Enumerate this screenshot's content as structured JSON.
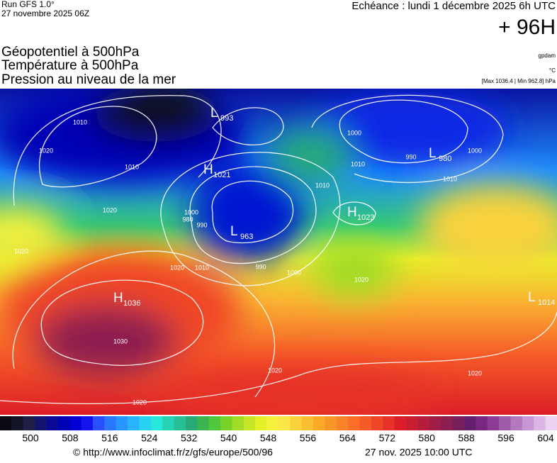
{
  "header": {
    "run": "Run GFS 1.0°",
    "run_date": "27 novembre 2025 06Z",
    "forecast": "Echéance : lundi 1 décembre 2025 6h UTC",
    "lead": "+ 96H"
  },
  "legend": {
    "fields": [
      "Géopotentiel à 500hPa",
      "Température à 500hPa",
      "Pression au niveau de la mer"
    ],
    "units": [
      "gpdam",
      "°C",
      "[Max 1036.4 | Min 962.8] hPa"
    ]
  },
  "map": {
    "centers": [
      {
        "letter": "L",
        "pressure": 993
      },
      {
        "letter": "H",
        "pressure": 1021
      },
      {
        "letter": "L",
        "pressure": 963
      },
      {
        "letter": "H",
        "pressure": 1023
      },
      {
        "letter": "L",
        "pressure": 980
      },
      {
        "letter": "H",
        "pressure": 1036
      },
      {
        "letter": "L",
        "pressure": 1014
      }
    ],
    "isobar_labels": [
      1010,
      1020,
      1010,
      1020,
      1020,
      1000,
      990,
      980,
      1020,
      1010,
      1000,
      990,
      1010,
      1000,
      1010,
      990,
      1000,
      1010,
      1030,
      1020,
      1020,
      1020,
      1020
    ]
  },
  "scale": {
    "labels": [
      500,
      508,
      516,
      524,
      532,
      540,
      548,
      556,
      564,
      572,
      580,
      588,
      596,
      604
    ],
    "colors": [
      "#0a0a14",
      "#141428",
      "#1e1e46",
      "#14146e",
      "#0a0a96",
      "#0000b4",
      "#0000d2",
      "#1414f0",
      "#2850ff",
      "#2878ff",
      "#2896ff",
      "#28b4ff",
      "#28d2f0",
      "#28e6dc",
      "#28d2b4",
      "#28be96",
      "#28aa78",
      "#3cb450",
      "#50c83c",
      "#78d228",
      "#a0dc28",
      "#c8e628",
      "#e6f028",
      "#f5f03c",
      "#fae646",
      "#fad23c",
      "#fabe32",
      "#faaa28",
      "#fa9628",
      "#fa8228",
      "#fa6e28",
      "#f55a28",
      "#f04628",
      "#e63228",
      "#dc1e28",
      "#c81e32",
      "#b41e3c",
      "#a01e46",
      "#8c1e50",
      "#781e5a",
      "#641e6e",
      "#782882",
      "#8c3c96",
      "#a05aaa",
      "#b478be",
      "#c896d2",
      "#dcb4e6",
      "#ebd2f0"
    ]
  },
  "footer": {
    "url": "© http://www.infoclimat.fr/z/gfs/europe/500/96",
    "timestamp": "27 nov. 2025 10:00 UTC"
  }
}
